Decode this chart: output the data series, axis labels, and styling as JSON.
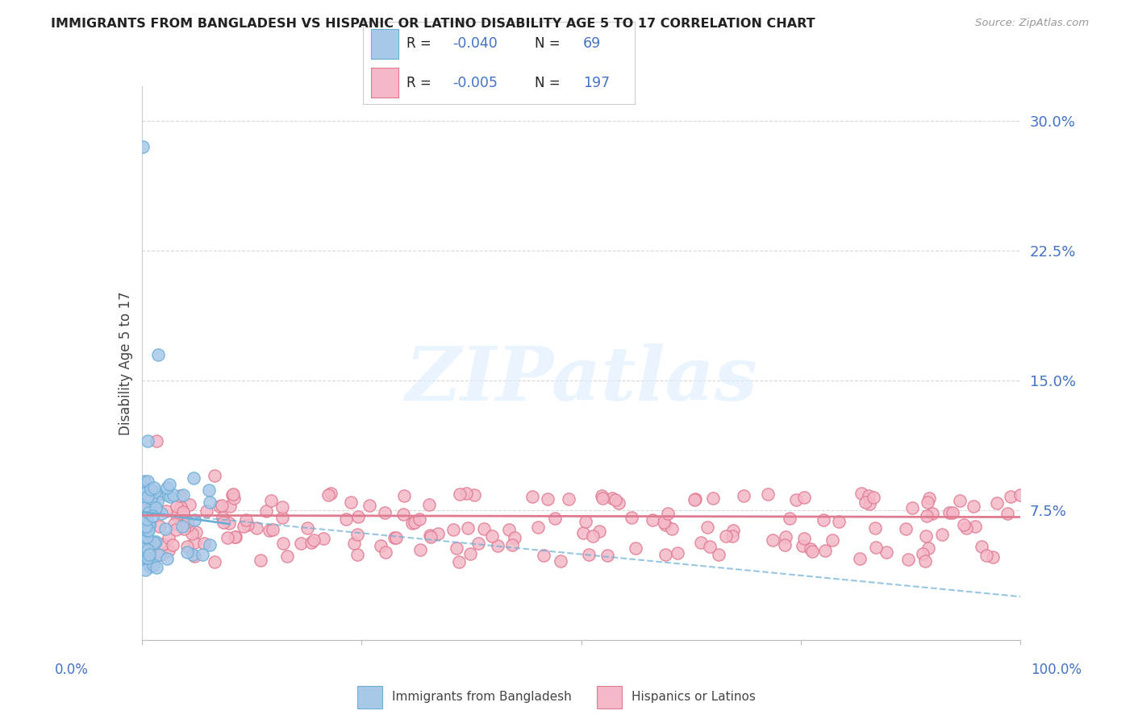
{
  "title": "IMMIGRANTS FROM BANGLADESH VS HISPANIC OR LATINO DISABILITY AGE 5 TO 17 CORRELATION CHART",
  "source_text": "Source: ZipAtlas.com",
  "ylabel": "Disability Age 5 to 17",
  "xlim": [
    0.0,
    1.0
  ],
  "ylim": [
    0.0,
    0.32
  ],
  "ytick_vals": [
    0.0,
    0.075,
    0.15,
    0.225,
    0.3
  ],
  "ytick_labels": [
    "",
    "7.5%",
    "15.0%",
    "22.5%",
    "30.0%"
  ],
  "watermark_text": "ZIPatlas",
  "color_bangladesh_fill": "#a8c8e8",
  "color_bangladesh_edge": "#6baed6",
  "color_latino_fill": "#f4b8c8",
  "color_latino_edge": "#e07a90",
  "color_blue_trend": "#6baed6",
  "color_red_trend": "#e07a90",
  "color_text_blue": "#4472c4",
  "color_grid": "#d8d8d8",
  "background_color": "#ffffff",
  "bang_trend_x0": 0.0,
  "bang_trend_y0": 0.074,
  "bang_trend_x1": 0.08,
  "bang_trend_y1": 0.068,
  "bang_trend_dash_x1": 1.0,
  "bang_trend_dash_y1": 0.025,
  "lat_trend_y0": 0.072,
  "lat_trend_y1": 0.071,
  "legend_r1": "-0.040",
  "legend_n1": "69",
  "legend_r2": "-0.005",
  "legend_n2": "197"
}
